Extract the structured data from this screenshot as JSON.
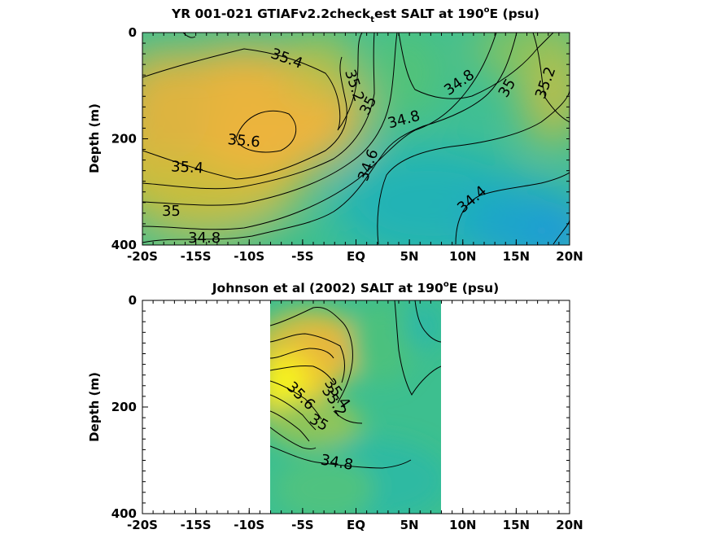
{
  "chart_data": [
    {
      "type": "contour",
      "title_main": "YR 001-021 GTIAFv2.2check",
      "title_sub": "t",
      "title_rest": "est SALT at 190",
      "title_sup": "o",
      "title_end": "E (psu)",
      "ylabel": "Depth (m)",
      "xlim": [
        -20,
        20
      ],
      "ylim": [
        0,
        400
      ],
      "y_reversed": true,
      "xticks": [
        -20,
        -15,
        -10,
        -5,
        0,
        5,
        10,
        15,
        20
      ],
      "xtick_labels": [
        "-20S",
        "-15S",
        "-10S",
        "-5S",
        "EQ",
        "5N",
        "10N",
        "15N",
        "20N"
      ],
      "yticks": [
        0,
        200,
        400
      ],
      "ytick_labels": [
        "0",
        "200",
        "400"
      ],
      "data_extent": [
        -20,
        20
      ],
      "contour_labels": [
        {
          "text": "35.4",
          "x": -6.5,
          "y": 50,
          "rot": 20
        },
        {
          "text": "35.2",
          "x": -0.2,
          "y": 100,
          "rot": 72
        },
        {
          "text": "35",
          "x": 1.2,
          "y": 138,
          "rot": -62
        },
        {
          "text": "35.6",
          "x": -10.5,
          "y": 205,
          "rot": 5
        },
        {
          "text": "34.8",
          "x": 4.5,
          "y": 165,
          "rot": -15
        },
        {
          "text": "34.8",
          "x": 9.7,
          "y": 95,
          "rot": -35
        },
        {
          "text": "35",
          "x": 14.2,
          "y": 105,
          "rot": -60
        },
        {
          "text": "35.2",
          "x": 17.8,
          "y": 95,
          "rot": -70
        },
        {
          "text": "35.4",
          "x": -15.8,
          "y": 255,
          "rot": 3
        },
        {
          "text": "34.6",
          "x": 1.2,
          "y": 250,
          "rot": -70
        },
        {
          "text": "34.4",
          "x": 10.9,
          "y": 315,
          "rot": -40
        },
        {
          "text": "35",
          "x": -17.3,
          "y": 337,
          "rot": 0
        },
        {
          "text": "34.8",
          "x": -14.2,
          "y": 388,
          "rot": 0
        }
      ],
      "colorbar_range_psu": [
        34.2,
        35.8
      ]
    },
    {
      "type": "contour",
      "title_main": "Johnson et al (2002) SALT at 190",
      "title_sup": "o",
      "title_end": "E (psu)",
      "ylabel": "Depth (m)",
      "xlim": [
        -20,
        20
      ],
      "ylim": [
        0,
        400
      ],
      "y_reversed": true,
      "xticks": [
        -20,
        -15,
        -10,
        -5,
        0,
        5,
        10,
        15,
        20
      ],
      "xtick_labels": [
        "-20S",
        "-15S",
        "-10S",
        "-5S",
        "EQ",
        "5N",
        "10N",
        "15N",
        "20N"
      ],
      "yticks": [
        0,
        200,
        400
      ],
      "ytick_labels": [
        "0",
        "200",
        "400"
      ],
      "data_extent": [
        -8,
        8
      ],
      "contour_labels": [
        {
          "text": "35.4",
          "x": -1.8,
          "y": 175,
          "rot": 55
        },
        {
          "text": "35.2",
          "x": -2.1,
          "y": 190,
          "rot": 58
        },
        {
          "text": "35.6",
          "x": -5.2,
          "y": 180,
          "rot": 45
        },
        {
          "text": "35",
          "x": -3.5,
          "y": 230,
          "rot": 30
        },
        {
          "text": "34.8",
          "x": -1.8,
          "y": 305,
          "rot": 10
        }
      ],
      "colorbar_range_psu": [
        34.2,
        35.8
      ]
    }
  ]
}
